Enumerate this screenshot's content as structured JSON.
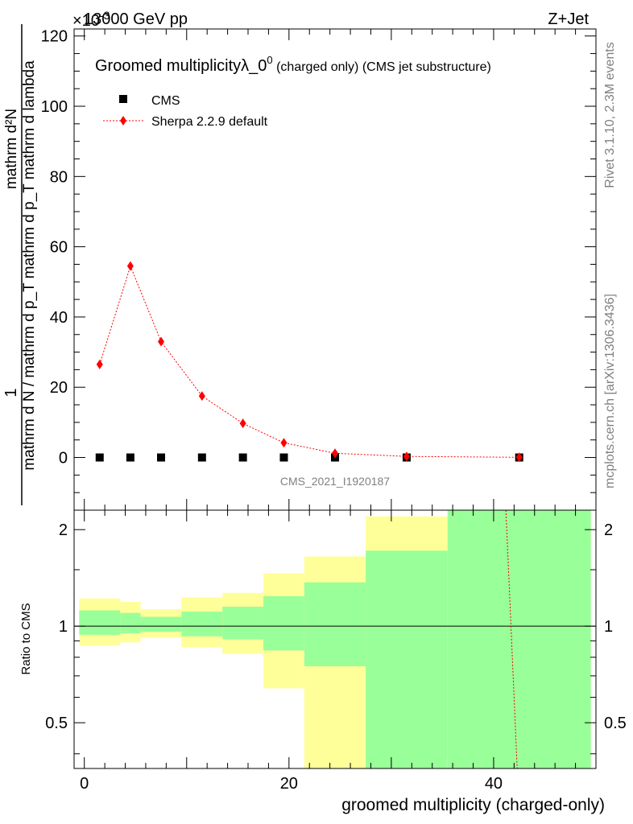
{
  "header": {
    "energy_label": "13000 GeV pp",
    "process_label": "Z+Jet",
    "exponent_label": "×10",
    "exponent_power": "-3"
  },
  "side_labels": {
    "rivet": "Rivet 3.1.10,  2.3M events",
    "mcplots": "mcplots.cern.ch [arXiv:1306.3436]"
  },
  "watermark": "CMS_2021_I1920187",
  "chart_data": [
    {
      "type": "scatter",
      "title_main": "Groomed multiplicity",
      "title_lambda": "λ_0",
      "title_sup": "0",
      "title_rest": " (charged only) (CMS jet substructure)",
      "ylabel_num": "mathrm d²N",
      "ylabel_den": "mathrm d N / mathrm d p_T mathrm d p_T mathrm d lambda",
      "ylabel_one": "1",
      "ylim": [
        -15,
        122
      ],
      "yticks": [
        0,
        20,
        40,
        60,
        80,
        100,
        120
      ],
      "xlim": [
        -1,
        50
      ],
      "legend_position": "top-left",
      "series": [
        {
          "name": "CMS",
          "color": "#000000",
          "marker": "square",
          "x": [
            1.5,
            4.5,
            7.5,
            11.5,
            15.5,
            19.5,
            24.5,
            31.5,
            42.5
          ],
          "y": [
            0,
            0,
            0,
            0,
            0,
            0,
            0,
            0,
            0
          ]
        },
        {
          "name": "Sherpa 2.2.9 default",
          "color": "#ff0000",
          "marker": "diamond",
          "line": "dotted",
          "x": [
            1.5,
            4.5,
            7.5,
            11.5,
            15.5,
            19.5,
            24.5,
            31.5,
            42.5
          ],
          "y": [
            26.5,
            54.5,
            33.0,
            17.5,
            9.7,
            4.2,
            1.2,
            0.3,
            0.05
          ]
        }
      ]
    },
    {
      "type": "area",
      "ylabel": "Ratio to CMS",
      "xlabel": "groomed multiplicity (charged-only)",
      "ylim": [
        0.36,
        2.3
      ],
      "yticks": [
        0.5,
        1,
        2
      ],
      "xticks": [
        0,
        20,
        40
      ],
      "xlim": [
        -1,
        50
      ],
      "reference_line": 1,
      "bins": [
        {
          "x0": -0.5,
          "x1": 3.5,
          "stat_lo": 0.94,
          "stat_hi": 1.12,
          "tot_lo": 0.87,
          "tot_hi": 1.22
        },
        {
          "x0": 3.5,
          "x1": 5.5,
          "stat_lo": 0.95,
          "stat_hi": 1.1,
          "tot_lo": 0.89,
          "tot_hi": 1.19
        },
        {
          "x0": 5.5,
          "x1": 9.5,
          "stat_lo": 0.96,
          "stat_hi": 1.07,
          "tot_lo": 0.92,
          "tot_hi": 1.13
        },
        {
          "x0": 9.5,
          "x1": 13.5,
          "stat_lo": 0.93,
          "stat_hi": 1.11,
          "tot_lo": 0.86,
          "tot_hi": 1.23
        },
        {
          "x0": 13.5,
          "x1": 17.5,
          "stat_lo": 0.91,
          "stat_hi": 1.15,
          "tot_lo": 0.82,
          "tot_hi": 1.27
        },
        {
          "x0": 17.5,
          "x1": 21.5,
          "stat_lo": 0.84,
          "stat_hi": 1.24,
          "tot_lo": 0.64,
          "tot_hi": 1.46
        },
        {
          "x0": 21.5,
          "x1": 27.5,
          "stat_lo": 0.75,
          "stat_hi": 1.37,
          "tot_lo": 0.36,
          "tot_hi": 1.65
        },
        {
          "x0": 27.5,
          "x1": 35.5,
          "stat_lo": 0.36,
          "stat_hi": 1.72,
          "tot_lo": 0.36,
          "tot_hi": 2.2
        },
        {
          "x0": 35.5,
          "x1": 49.5,
          "stat_lo": 0.36,
          "stat_hi": 2.3,
          "tot_lo": 0.36,
          "tot_hi": 2.3
        }
      ],
      "ratio_line": {
        "color": "#ff0000",
        "x": [
          41.2,
          42.3
        ],
        "y": [
          2.3,
          0.36
        ]
      },
      "stat_color": "#99ff99",
      "total_color": "#ffff99"
    }
  ]
}
